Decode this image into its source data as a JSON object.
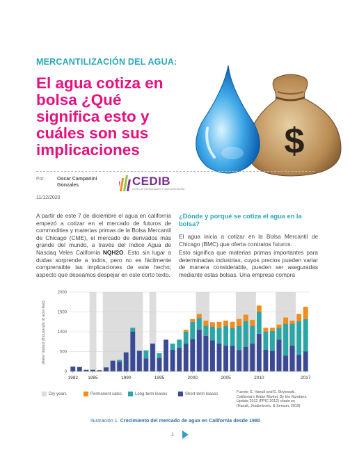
{
  "header": {
    "kicker": "MERCANTILIZACIÓN DEL AGUA:",
    "title": "El agua cotiza en bolsa ¿Qué significa esto y cuáles son sus implicaciones",
    "hero_symbol": "$"
  },
  "meta": {
    "author_label": "Por:",
    "author_name": "Oscar Campanini Gonzales",
    "date": "11/12/2020",
    "logo_text": "CEDIB",
    "logo_tagline": "Centro de documentación e información Bolivia"
  },
  "body": {
    "left_para": {
      "before": "A partir de este 7 de diciembre el agua en california empezó a cotizar en el mercado de futuros de commodities y materias primas de la Bolsa Mercantil de Chicago (CME), el mercado de derivados más grande del mundo, a través del índice Agua de Nasdaq Veles California ",
      "bold": "NQH2O",
      "after": ". Esto sin lugar a dudas sorprende a todos, pero no es fácilmente comprensible las implicaciones de este hecho; aspecto que deseamos despejar en este corto texto."
    },
    "right_heading": "¿Dónde y porqué se cotiza el agua en la bolsa?",
    "right_para1": "El agua inicia a cotizar en la Bolsa Mercantil de Chicago (BMC) que oferta contratos futuros.",
    "right_para2": "Esto significa que materias primas importantes para determinadas industrias, cuyos precios pueden variar de manera considerable, pueden ser aseguradas mediante estas bolsas. Una empresa compra"
  },
  "figure": {
    "source_lines": [
      "Fuente: E. Hanak and E. Stryjewski.",
      "California's Water Market, By the Numbers:",
      "Update 2012 (PPIC 2012) citado en",
      "(Hanak, Jezdimirovic, & Sencan, 2019)"
    ],
    "caption_prefix": "Ilustración 1.",
    "caption_text": "Crecimiento del mercado de agua en California desde 1980",
    "page_number": "1"
  },
  "chart_data": {
    "type": "bar",
    "stacked": true,
    "ylabel": "Water traded (thousands of acre-feet)",
    "ylim": [
      0,
      2000
    ],
    "yticks": [
      0,
      500,
      1000,
      1500,
      2000
    ],
    "xticks": [
      1982,
      1985,
      1990,
      1995,
      2000,
      2005,
      2010,
      2017
    ],
    "grid": true,
    "legend_position": "bottom-left",
    "colors": {
      "dry": "#dddddd",
      "permanent": "#f28c1a",
      "long_term": "#2ba6a6",
      "short_term": "#3b4a95"
    },
    "dry_years": [
      1985,
      1987,
      1988,
      1989,
      1990,
      1991,
      1992,
      1994,
      2001,
      2002,
      2007,
      2008,
      2009,
      2013,
      2014,
      2015
    ],
    "categories": [
      1982,
      1983,
      1984,
      1985,
      1986,
      1987,
      1988,
      1989,
      1990,
      1991,
      1992,
      1993,
      1994,
      1995,
      1996,
      1997,
      1998,
      1999,
      2000,
      2001,
      2002,
      2003,
      2004,
      2005,
      2006,
      2007,
      2008,
      2009,
      2010,
      2011,
      2012,
      2013,
      2014,
      2015,
      2016,
      2017
    ],
    "series": [
      {
        "name": "Short-term leases",
        "key": "short_term",
        "values": [
          120,
          110,
          40,
          40,
          30,
          100,
          270,
          250,
          480,
          1000,
          520,
          330,
          700,
          340,
          800,
          550,
          600,
          700,
          820,
          1050,
          900,
          780,
          700,
          650,
          650,
          540,
          620,
          700,
          950,
          550,
          520,
          800,
          400,
          650,
          420,
          500
        ]
      },
      {
        "name": "Long-term leases",
        "key": "long_term",
        "values": [
          0,
          0,
          0,
          0,
          0,
          0,
          0,
          40,
          0,
          100,
          0,
          200,
          0,
          120,
          0,
          150,
          200,
          300,
          430,
          300,
          250,
          350,
          400,
          500,
          450,
          600,
          650,
          450,
          550,
          450,
          500,
          300,
          800,
          550,
          850,
          820
        ]
      },
      {
        "name": "Permanent sales",
        "key": "permanent",
        "values": [
          0,
          0,
          0,
          0,
          0,
          0,
          0,
          0,
          0,
          0,
          0,
          0,
          0,
          0,
          0,
          0,
          0,
          50,
          70,
          100,
          130,
          110,
          150,
          130,
          150,
          180,
          160,
          150,
          160,
          100,
          80,
          80,
          160,
          80,
          180,
          310
        ]
      }
    ],
    "legend": [
      {
        "label": "Dry years",
        "key": "dry"
      },
      {
        "label": "Permanent sales",
        "key": "permanent"
      },
      {
        "label": "Long-term leases",
        "key": "long_term"
      },
      {
        "label": "Short-term leases",
        "key": "short_term"
      }
    ]
  }
}
